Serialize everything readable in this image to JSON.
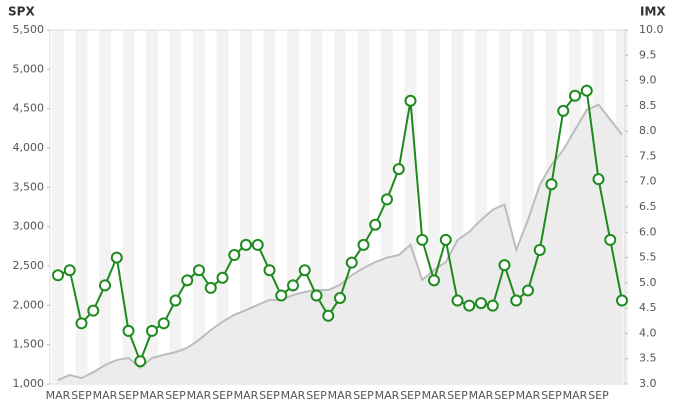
{
  "chart_data": {
    "type": "line",
    "y_label": "SPX",
    "y2_label": "IMX",
    "categories": [
      "MAR",
      null,
      "SEP",
      null,
      "MAR",
      null,
      "SEP",
      null,
      "MAR",
      null,
      "SEP",
      null,
      "MAR",
      null,
      "SEP",
      null,
      "MAR",
      null,
      "SEP",
      null,
      "MAR",
      null,
      "SEP",
      null,
      "MAR",
      null,
      "SEP",
      null,
      "MAR",
      null,
      "SEP",
      null,
      "MAR",
      null,
      "SEP",
      null,
      "MAR",
      null,
      "SEP",
      null,
      "MAR",
      null,
      "SEP",
      null,
      "MAR",
      null,
      "SEP",
      null,
      null
    ],
    "series": [
      {
        "name": "SPX",
        "color": "#bdbdbd",
        "axis": "y",
        "values": [
          1050,
          1115,
          1075,
          1150,
          1240,
          1305,
          1330,
          1205,
          1330,
          1370,
          1405,
          1460,
          1560,
          1685,
          1790,
          1880,
          1940,
          2005,
          2070,
          2070,
          2130,
          2170,
          2195,
          2195,
          2260,
          2385,
          2475,
          2550,
          2605,
          2640,
          2770,
          2325,
          2450,
          2550,
          2830,
          2935,
          3085,
          3215,
          3280,
          2705,
          3085,
          3530,
          3785,
          3975,
          4230,
          4485,
          4550,
          4360,
          4170
        ]
      },
      {
        "name": "IMX",
        "color": "#1e8a1e",
        "axis": "y2",
        "values": [
          5.15,
          5.25,
          4.2,
          4.45,
          4.95,
          5.5,
          4.05,
          3.45,
          4.05,
          4.2,
          4.65,
          5.05,
          5.25,
          4.9,
          5.1,
          5.55,
          5.75,
          5.75,
          5.25,
          4.75,
          4.95,
          5.25,
          4.75,
          4.35,
          4.7,
          5.4,
          5.75,
          6.15,
          6.65,
          7.25,
          8.6,
          5.85,
          5.05,
          5.85,
          4.65,
          4.55,
          4.6,
          4.55,
          5.35,
          4.65,
          4.85,
          5.65,
          6.95,
          8.4,
          8.7,
          8.8,
          7.05,
          5.85,
          4.65
        ]
      }
    ],
    "ylim": [
      1000,
      5500
    ],
    "yticks": [
      {
        "value": 1000,
        "label": "1,000"
      },
      {
        "value": 1500,
        "label": "1,500"
      },
      {
        "value": 2000,
        "label": "2,000"
      },
      {
        "value": 2500,
        "label": "2,500"
      },
      {
        "value": 3000,
        "label": "3,000"
      },
      {
        "value": 3500,
        "label": "3,500"
      },
      {
        "value": 4000,
        "label": "4,000"
      },
      {
        "value": 4500,
        "label": "4,500"
      },
      {
        "value": 5000,
        "label": "5,000"
      },
      {
        "value": 5500,
        "label": "5,500"
      }
    ],
    "y2lim": [
      3.0,
      10.0
    ],
    "y2ticks": [
      {
        "value": 3,
        "label": "3.0"
      },
      {
        "value": 3.5,
        "label": "3.5"
      },
      {
        "value": 4,
        "label": "4.0"
      },
      {
        "value": 4.5,
        "label": "4.5"
      },
      {
        "value": 5,
        "label": "5.0"
      },
      {
        "value": 5.5,
        "label": "5.5"
      },
      {
        "value": 6,
        "label": "6.0"
      },
      {
        "value": 6.5,
        "label": "6.5"
      },
      {
        "value": 7,
        "label": "7.0"
      },
      {
        "value": 7.5,
        "label": "7.5"
      },
      {
        "value": 8,
        "label": "8.0"
      },
      {
        "value": 8.5,
        "label": "8.5"
      },
      {
        "value": 9,
        "label": "9.0"
      },
      {
        "value": 9.5,
        "label": "9.5"
      },
      {
        "value": 10,
        "label": "10.0"
      }
    ]
  }
}
